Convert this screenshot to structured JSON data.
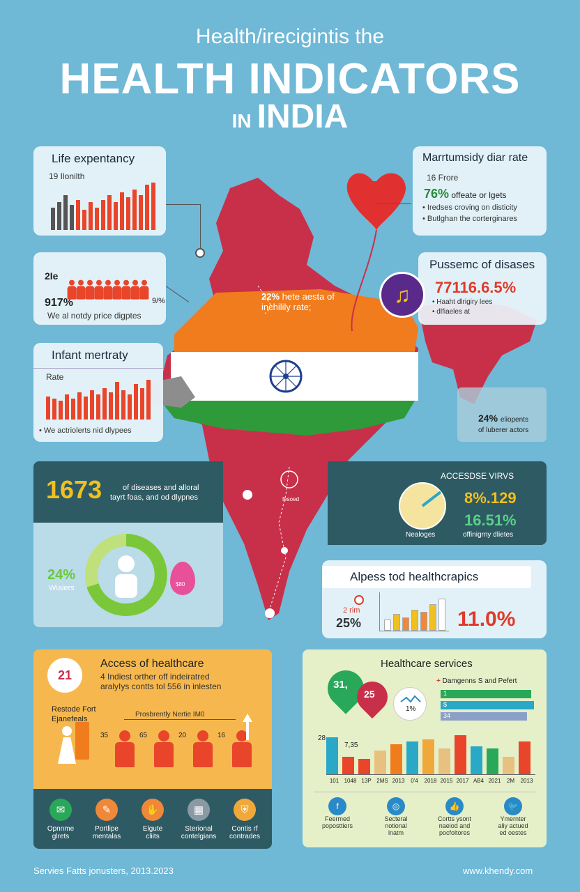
{
  "header": {
    "subtitle": "Health/irecigintis the",
    "title": "HEALTH INDICATORS",
    "title_prefix": "IN",
    "title_country": "INDIA"
  },
  "life_expectancy": {
    "title": "Life expentancy",
    "label": "19 Ilonilth",
    "bars": [
      0.45,
      0.55,
      0.7,
      0.5,
      0.6,
      0.4,
      0.55,
      0.45,
      0.6,
      0.7,
      0.55,
      0.75,
      0.65,
      0.8,
      0.7,
      0.9,
      0.95
    ]
  },
  "people_card": {
    "label": "2Ie",
    "pct_left": "917%",
    "pct_right": "9/%",
    "caption": "We al notdy price digptes"
  },
  "infant_mortality": {
    "title": "Infant mertraty",
    "label": "Rate",
    "caption": "• We actriolerts nid dlypees",
    "bars": [
      0.55,
      0.5,
      0.45,
      0.6,
      0.5,
      0.65,
      0.55,
      0.7,
      0.6,
      0.75,
      0.65,
      0.9,
      0.7,
      0.6,
      0.85,
      0.75,
      0.95
    ]
  },
  "maternity": {
    "title": "Marrtumsidy diar rate",
    "label": "16 Frore",
    "pct": "76%",
    "pct_text": "offeate or lgets",
    "bullet1": "• Iredses croving on disticity",
    "bullet2": "• Butlghan the corterginares"
  },
  "diseases": {
    "title": "Pussemc of disases",
    "pct": "77116.6.5%",
    "line1": "• Haaht dlrigiry lees",
    "line2": "• dlfiaeles at"
  },
  "map": {
    "callout_pct": "22%",
    "callout_text": "hete aesta of inchilily rate;",
    "marker_text": "fesoed"
  },
  "right_box": {
    "pct": "24%",
    "text1": "eliopents",
    "text2": "of luberer actors"
  },
  "dark_band": {
    "big_number": "1673",
    "text1": "of diseases and alloral",
    "text2": "tayrt foas, and od dlypnes",
    "right_title": "ACCESDSE VIRVS",
    "pie_label": "Nealoges",
    "pct1": "8%.129",
    "pct2": "16.51%",
    "pct2_label": "offinigrny dlietes"
  },
  "donut": {
    "pct": "24%",
    "label": "Wiaiers",
    "drop_label": "$80"
  },
  "alpess": {
    "title": "Alpess tod healthcrapics",
    "small_label": "2 rim",
    "pct_left": "25%",
    "pct_right": "11.0%",
    "bars": [
      0.3,
      0.45,
      0.35,
      0.55,
      0.5,
      0.7,
      0.85
    ]
  },
  "access": {
    "number": "21",
    "title": "Access of healthcare",
    "line1": "4 Indiest orther off indeiratred",
    "line2": "aralyIys contts tol 556 in inlesten",
    "left_label1": "Restode Fort",
    "left_label2": "Ejanefeals",
    "bracket_label": "Prosbrently Nertie IM0",
    "people": [
      "35",
      "65",
      "20",
      "16"
    ]
  },
  "services": {
    "title": "Healthcare services",
    "pin1": "31,",
    "pin2": "25",
    "bubble": "1%",
    "legend": "Damgenns S and Pefert",
    "legend_bars": [
      "1",
      "$",
      "34"
    ],
    "axis_top": "28",
    "axis_mid": "7,35",
    "xlabels": [
      "101",
      "1048",
      "13P",
      "2MS",
      "2013",
      "0'4",
      "2018",
      "2015",
      "2017",
      "AB4",
      "2021",
      "2M",
      "2013"
    ],
    "bars": [
      0.85,
      0.4,
      0.35,
      0.55,
      0.7,
      0.75,
      0.8,
      0.6,
      0.9,
      0.65,
      0.6,
      0.4,
      0.75
    ]
  },
  "footer_icons": [
    {
      "label1": "Opnnme",
      "label2": "glrets",
      "color": "#2aa85a",
      "icon": "mail-icon"
    },
    {
      "label1": "Portlipe",
      "label2": "mentalas",
      "color": "#f0883a",
      "icon": "edit-icon"
    },
    {
      "label1": "Elgute",
      "label2": "cliits",
      "color": "#f0883a",
      "icon": "hand-icon"
    },
    {
      "label1": "Sterional",
      "label2": "contelgians",
      "color": "#8a9aa5",
      "icon": "grid-icon"
    },
    {
      "label1": "Contis rf",
      "label2": "contrades",
      "color": "#f0a83a",
      "icon": "shield-icon"
    }
  ],
  "social_icons": [
    {
      "label1": "Feermed",
      "label2": "poposttiers",
      "icon": "facebook-icon"
    },
    {
      "label1": "Secteral",
      "label2": "notional",
      "label3": "lnatm",
      "icon": "instagram-icon"
    },
    {
      "label1": "Cortts ysont",
      "label2": "naeiod and",
      "label3": "pocfoltores",
      "icon": "thumb-icon"
    },
    {
      "label1": "Ymernter",
      "label2": "aliy actued",
      "label3": "ed oestes",
      "icon": "twitter-icon"
    }
  ],
  "footer": {
    "source": "Servies Fatts jonusters, 2013.2023",
    "website": "www.khendy.com"
  },
  "colors": {
    "background": "#6fb8d6",
    "saffron": "#f07c1e",
    "green": "#2f9a3a",
    "map_red": "#c8304a",
    "bar_red": "#e8452a"
  }
}
